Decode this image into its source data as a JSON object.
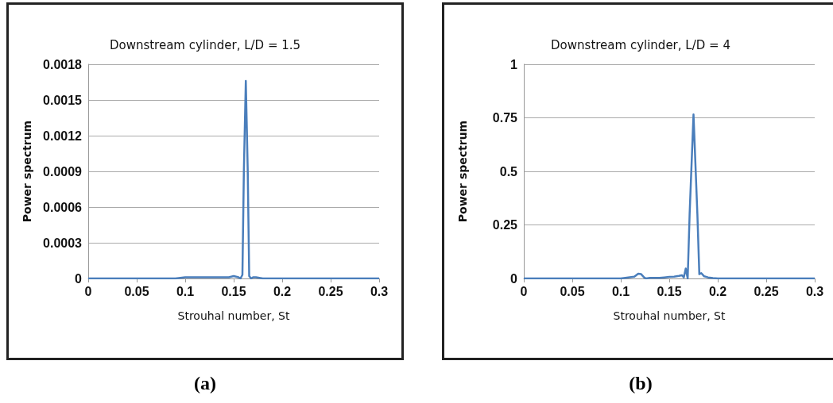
{
  "chart_data": [
    {
      "type": "line",
      "title": "Downstream cylinder, L/D = 1.5",
      "xlabel": "Strouhal number, St",
      "ylabel": "Power spectrum",
      "annotations": [
        "(a)"
      ],
      "xlim": [
        0,
        0.3
      ],
      "xticks": [
        0,
        0.05,
        0.1,
        0.15,
        0.2,
        0.25,
        0.3
      ],
      "ylim": [
        0,
        0.0018
      ],
      "yticks": [
        0,
        0.0003,
        0.0006,
        0.0009,
        0.0012,
        0.0015,
        0.0018
      ],
      "grid": "y",
      "marker": "none",
      "line_style": "solid",
      "series": [
        {
          "color": "#4a7ebb",
          "x": [
            0,
            0.05,
            0.09,
            0.1,
            0.12,
            0.135,
            0.14,
            0.145,
            0.15,
            0.155,
            0.157,
            0.159,
            0.1605,
            0.1625,
            0.1645,
            0.166,
            0.168,
            0.17,
            0.173,
            0.18,
            0.2,
            0.25,
            0.3
          ],
          "values": [
            0,
            0,
            0,
            1e-05,
            1e-05,
            1e-05,
            1e-05,
            1e-05,
            2e-05,
            1e-05,
            0,
            3e-05,
            0.0009,
            0.00166,
            0.0009,
            2e-05,
            0,
            1e-05,
            1e-05,
            0,
            0,
            0,
            0
          ]
        }
      ]
    },
    {
      "type": "line",
      "title": "Downstream cylinder, L/D = 4",
      "xlabel": "Strouhal number, St",
      "ylabel": "Power spectrum",
      "annotations": [
        "(b)"
      ],
      "xlim": [
        0,
        0.3
      ],
      "xticks": [
        0,
        0.05,
        0.1,
        0.15,
        0.2,
        0.25,
        0.3
      ],
      "ylim": [
        0,
        1
      ],
      "yticks": [
        0,
        0.25,
        0.5,
        0.75,
        1
      ],
      "grid": "y",
      "marker": "none",
      "line_style": "solid",
      "series": [
        {
          "color": "#4a7ebb",
          "x": [
            0,
            0.05,
            0.1,
            0.114,
            0.118,
            0.121,
            0.124,
            0.126,
            0.13,
            0.14,
            0.145,
            0.15,
            0.155,
            0.16,
            0.163,
            0.165,
            0.167,
            0.169,
            0.171,
            0.175,
            0.179,
            0.181,
            0.183,
            0.186,
            0.19,
            0.195,
            0.2,
            0.25,
            0.3
          ],
          "values": [
            0,
            0,
            0,
            0.008,
            0.022,
            0.02,
            0.005,
            0,
            0.003,
            0.003,
            0.005,
            0.007,
            0.008,
            0.012,
            0.015,
            0.005,
            0.046,
            0,
            0.3,
            0.766,
            0.3,
            0.02,
            0.025,
            0.01,
            0.005,
            0.002,
            0,
            0,
            0
          ]
        }
      ]
    }
  ]
}
